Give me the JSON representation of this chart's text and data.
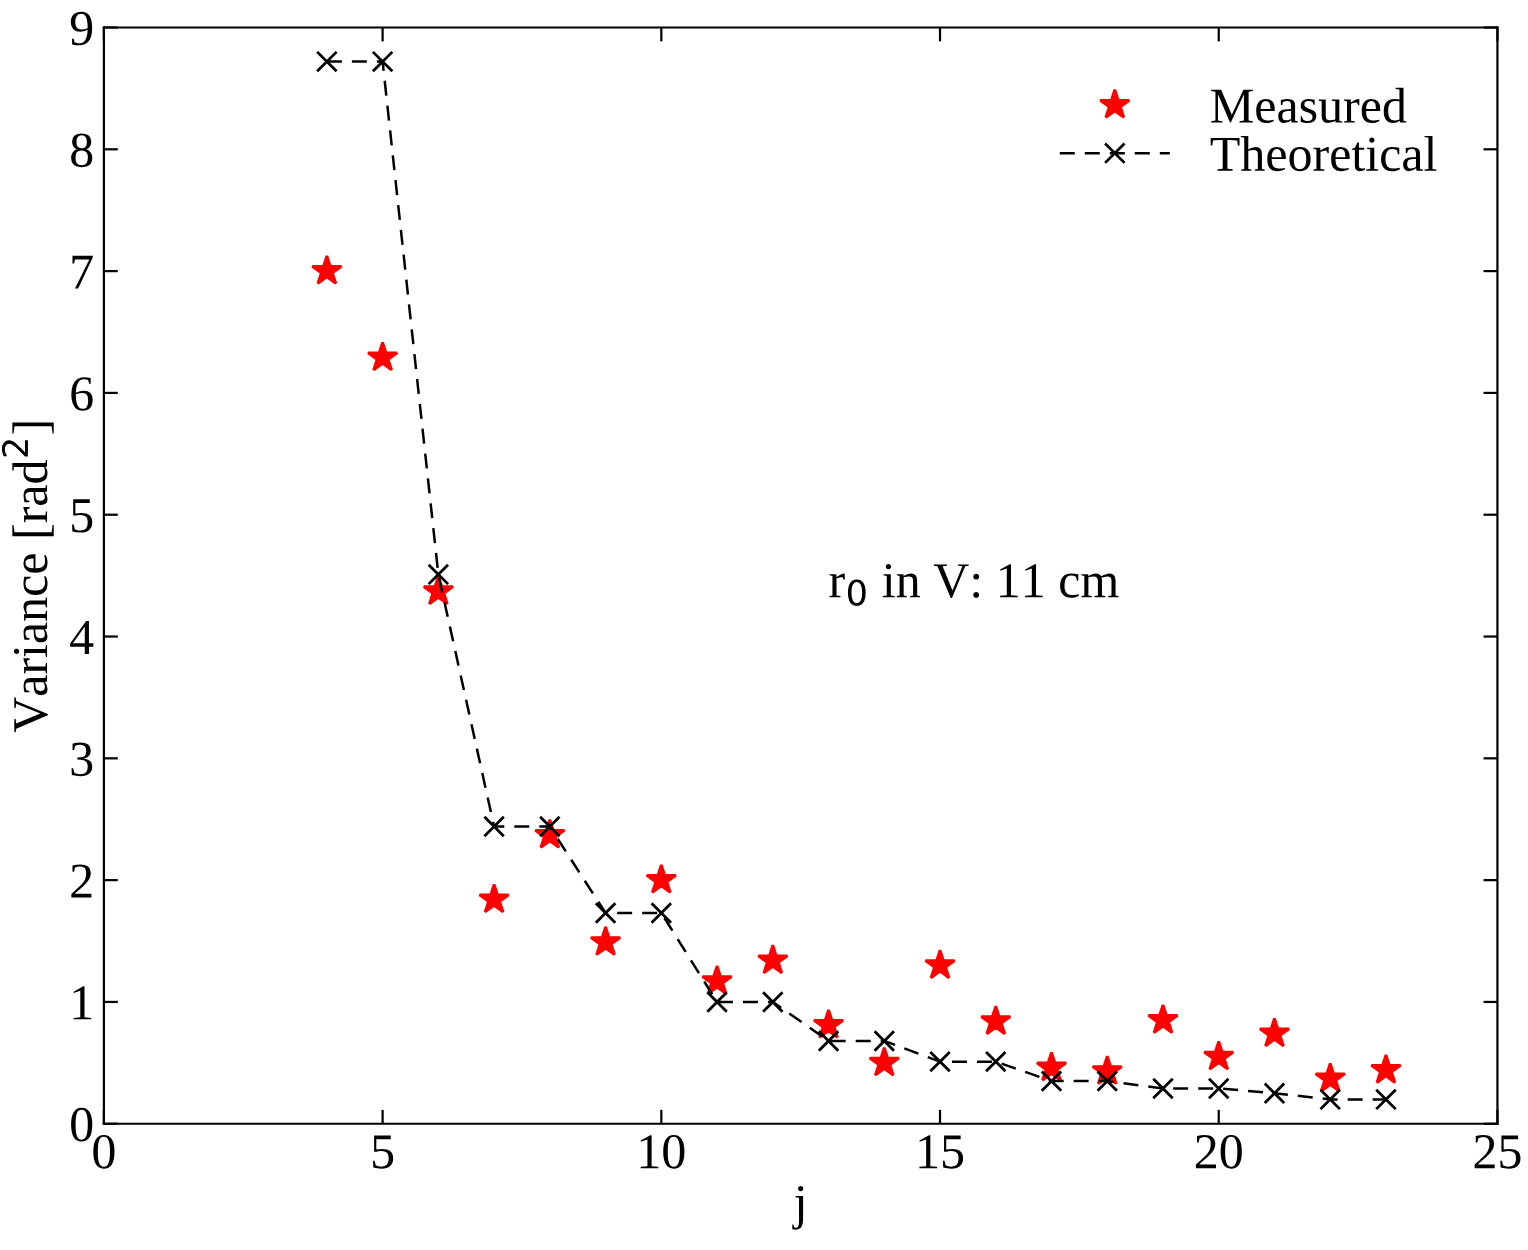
{
  "chart_data": {
    "type": "line",
    "xlabel": "j",
    "ylabel": "Variance [rad$^{2}$]",
    "x": [
      4,
      5,
      6,
      7,
      8,
      9,
      10,
      11,
      12,
      13,
      14,
      15,
      16,
      17,
      18,
      19,
      20,
      21,
      22,
      23
    ],
    "series": [
      {
        "name": "Measured",
        "type": "scatter",
        "color": "#ff0000",
        "marker": "star",
        "values": [
          7.0,
          6.29,
          4.37,
          1.84,
          2.37,
          1.49,
          2.0,
          1.17,
          1.34,
          0.81,
          0.5,
          1.3,
          0.84,
          0.46,
          0.43,
          0.85,
          0.55,
          0.74,
          0.37,
          0.44
        ]
      },
      {
        "name": "Theoretical",
        "color": "#000000",
        "marker": "cross",
        "line_style": "dashed",
        "values": [
          8.72,
          8.72,
          4.51,
          2.44,
          2.44,
          1.73,
          1.73,
          1.0,
          1.0,
          0.68,
          0.68,
          0.51,
          0.51,
          0.35,
          0.35,
          0.29,
          0.29,
          0.25,
          0.2,
          0.2
        ]
      }
    ],
    "xlim": [
      0,
      25
    ],
    "xticks": [
      0,
      5,
      10,
      15,
      20,
      25
    ],
    "ylim": [
      0,
      9
    ],
    "yticks": [
      0,
      1,
      2,
      3,
      4,
      5,
      6,
      7,
      8,
      9
    ],
    "grid": false,
    "legend": "top right",
    "annotations": [
      "r$_{0}$ in V: 11 cm"
    ]
  }
}
